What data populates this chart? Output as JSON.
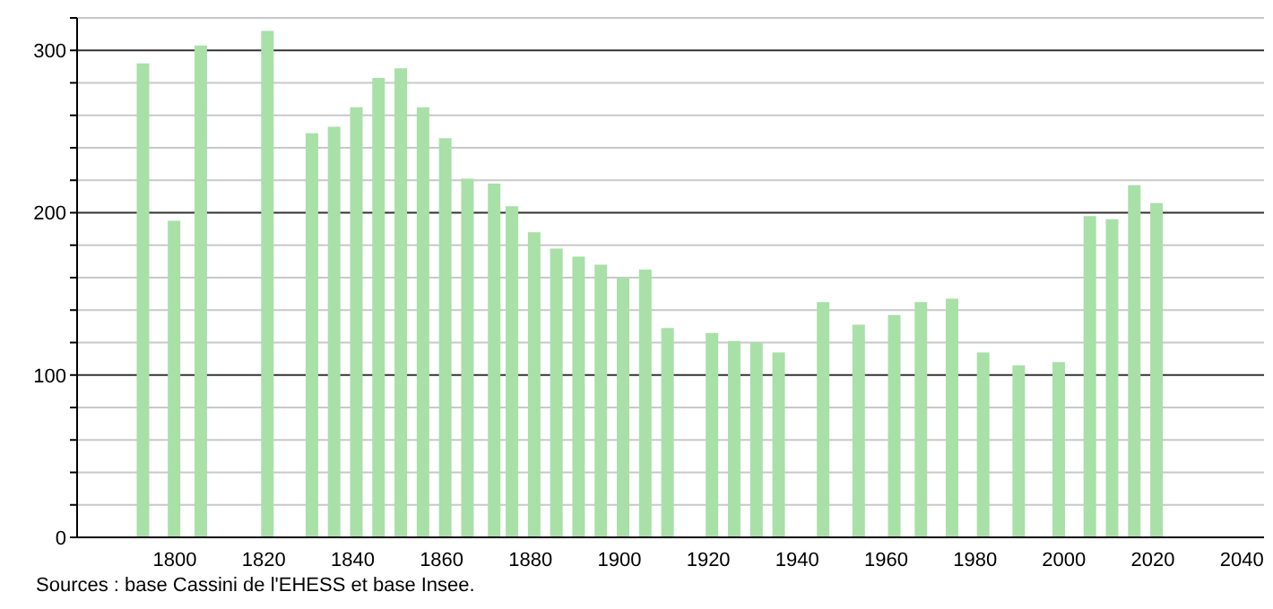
{
  "chart_data": {
    "type": "bar",
    "x": [
      1793,
      1800,
      1806,
      1821,
      1831,
      1836,
      1841,
      1846,
      1851,
      1856,
      1861,
      1866,
      1872,
      1876,
      1881,
      1886,
      1891,
      1896,
      1901,
      1906,
      1911,
      1921,
      1926,
      1931,
      1936,
      1946,
      1954,
      1962,
      1968,
      1975,
      1982,
      1990,
      1999,
      2006,
      2011,
      2016,
      2021
    ],
    "values": [
      292,
      195,
      303,
      312,
      249,
      253,
      265,
      283,
      289,
      265,
      246,
      221,
      218,
      204,
      188,
      178,
      173,
      168,
      160,
      165,
      129,
      126,
      121,
      120,
      114,
      145,
      131,
      137,
      145,
      147,
      114,
      106,
      108,
      198,
      196,
      217,
      206
    ],
    "color": "#a8e0a8",
    "xlim": [
      1778,
      2045
    ],
    "xticks": [
      1800,
      1820,
      1840,
      1860,
      1880,
      1900,
      1920,
      1940,
      1960,
      1980,
      2000,
      2020,
      2040
    ],
    "ylim": [
      0,
      320
    ],
    "yticks": [
      0,
      {
        "value": 20,
        "label": null
      },
      {
        "value": 40,
        "label": null
      },
      {
        "value": 60,
        "label": null
      },
      {
        "value": 80,
        "label": null
      },
      100,
      {
        "value": 120,
        "label": null
      },
      {
        "value": 140,
        "label": null
      },
      {
        "value": 160,
        "label": null
      },
      {
        "value": 180,
        "label": null
      },
      200,
      {
        "value": 220,
        "label": null
      },
      {
        "value": 240,
        "label": null
      },
      {
        "value": 260,
        "label": null
      },
      {
        "value": 280,
        "label": null
      },
      300,
      {
        "value": 320,
        "label": null
      }
    ],
    "grid": "y",
    "annotations": [
      "Sources : base Cassini de l'EHESS et base Insee."
    ]
  }
}
